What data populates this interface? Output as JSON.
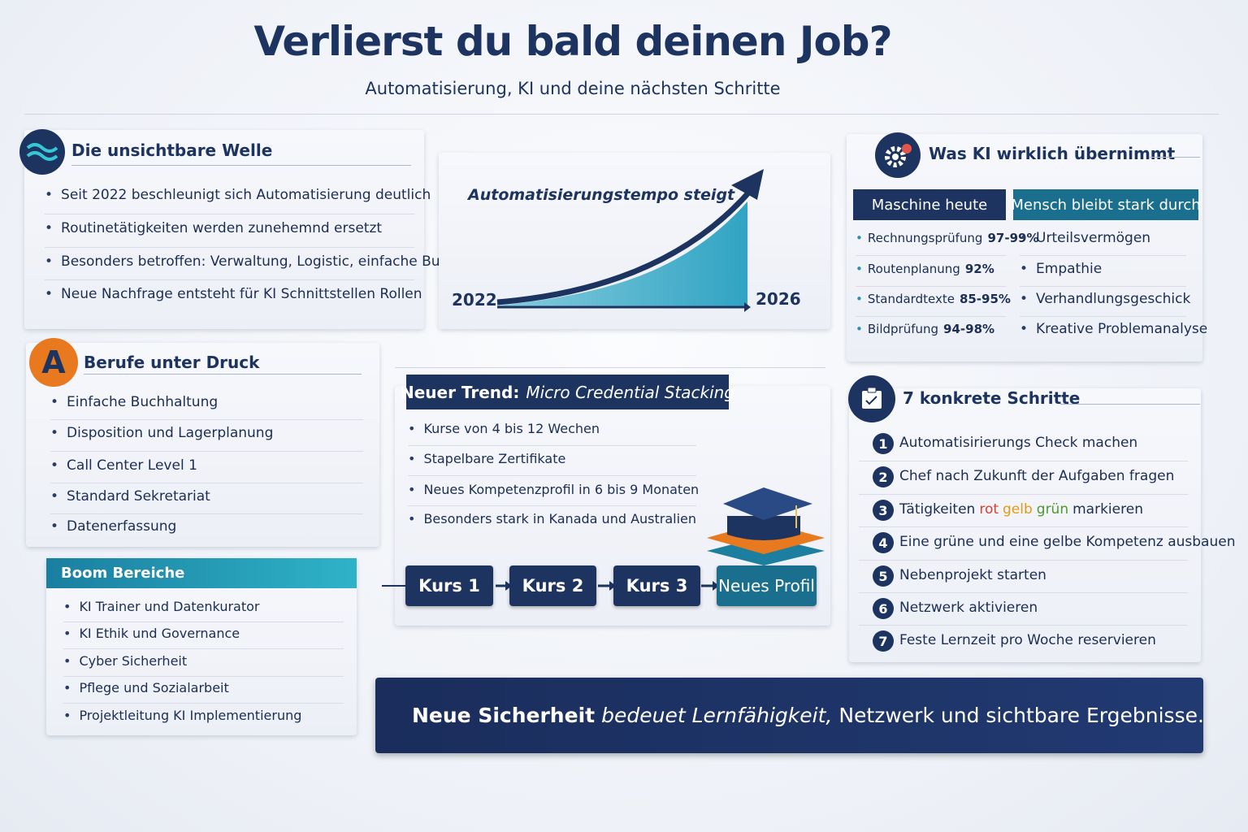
{
  "header": {
    "title": "Verlierst du bald deinen Job?",
    "subtitle": "Automatisierung, KI und deine nächsten Schritte"
  },
  "wave": {
    "title": "Die unsichtbare Welle",
    "items": [
      "Seit 2022 beschleunigt sich Automatisierung deutlich",
      "Routinetätigkeiten werden zunehemnd ersetzt",
      "Besonders betroffen: Verwaltung, Logistic, einfache Buchhaltung",
      "Neue Nachfrage entsteht für KI Schnittstellen Rollen"
    ]
  },
  "trend_chart": {
    "title": "Automatisierungstempo steigt",
    "start_label": "2022",
    "end_label": "2026"
  },
  "ai_takes": {
    "title": "Was KI wirklich übernimmt",
    "machine": {
      "header": "Maschine heute",
      "items": [
        {
          "task": "Rechnungsprüfung",
          "rate": "97-99%"
        },
        {
          "task": "Routenplanung",
          "rate": "92%"
        },
        {
          "task": "Standardtexte",
          "rate": "85-95%"
        },
        {
          "task": "Bildprüfung",
          "rate": "94-98%"
        }
      ]
    },
    "human": {
      "header": "Mensch bleibt stark durch",
      "items": [
        "Urteilsvermögen",
        "Empathie",
        "Verhandlungsgeschick",
        "Kreative Problemanalyse"
      ]
    }
  },
  "pressure": {
    "badge": "A",
    "title": "Berufe unter Druck",
    "items": [
      "Einfache Buchhaltung",
      "Disposition und Lagerplanung",
      "Call Center Level 1",
      "Standard Sekretariat",
      "Datenerfassung"
    ]
  },
  "boom": {
    "title": "Boom Bereiche",
    "items": [
      "KI Trainer und Datenkurator",
      "KI Ethik und Governance",
      "Cyber Sicherheit",
      "Pflege und Sozialarbeit",
      "Projektleitung KI Implementierung"
    ]
  },
  "micro": {
    "label": "Neuer Trend:",
    "title": "Micro Credential Stacking",
    "items": [
      "Kurse von 4 bis 12 Wechen",
      "Stapelbare Zertifikate",
      "Neues Kompetenzprofil in 6 bis 9 Monaten",
      "Besonders stark in Kanada und Australien"
    ],
    "path": [
      "Kurs 1",
      "Kurs 2",
      "Kurs 3",
      "Neues Profil"
    ]
  },
  "steps": {
    "title": "7 konkrete Schritte",
    "items": [
      {
        "number": 1,
        "parts": [
          "Automatisirierungs Check machen"
        ]
      },
      {
        "number": 2,
        "parts": [
          "Chef nach Zukunft der Aufgaben fragen"
        ]
      },
      {
        "number": 3,
        "parts": [
          "Tätigkeiten",
          "rot",
          "gelb",
          "grün",
          "markieren"
        ]
      },
      {
        "number": 4,
        "parts": [
          "Eine grüne und eine gelbe Kompetenz ausbauen"
        ]
      },
      {
        "number": 5,
        "parts": [
          "Nebenprojekt starten"
        ]
      },
      {
        "number": 6,
        "parts": [
          "Netzwerk aktivieren"
        ]
      },
      {
        "number": 7,
        "parts": [
          "Feste Lernzeit pro Woche reservieren"
        ]
      }
    ]
  },
  "footer": {
    "strong": "Neue Sicherheit",
    "emphasis": "bedeuet Lernfähigkeit,",
    "rest": "Netzwerk und sichtbare Ergebnisse."
  }
}
